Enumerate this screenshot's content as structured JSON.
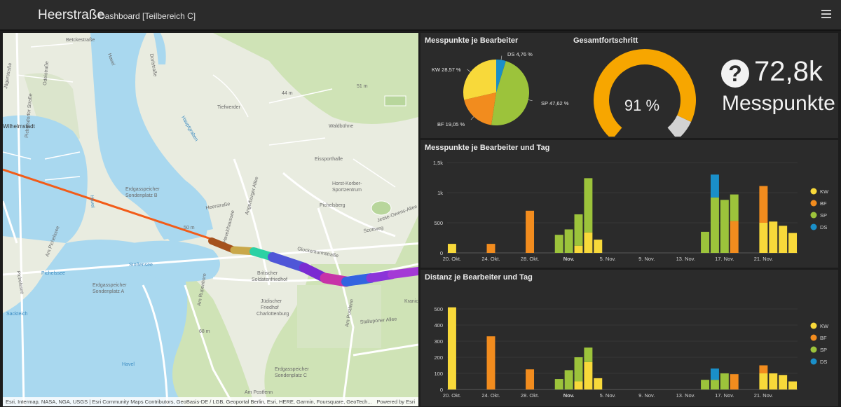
{
  "header": {
    "title": "Heerstraße",
    "subtitle": "Dashboard [Teilbereich C]"
  },
  "map": {
    "attribution": "Esri, Intermap, NASA, NGA, USGS | Esri Community Maps Contributors, GeoBasis-DE / LGB, Geoportal Berlin, Esri, HERE, Garmin, Foursquare, GeoTech...",
    "powered_by": "Powered by Esri",
    "labels": [
      "Betckestraße",
      "Jägerstraße",
      "Dorfstraße",
      "Havel",
      "Pichelsdorfer Straße",
      "Odeistraße",
      "Wilhelmstadt",
      "Tiefwerder",
      "Hauptgraben",
      "Waldbühne",
      "44 m",
      "51 m",
      "Erdgasspeicher Sondenplatz B",
      "Angerburger Allee",
      "Havelchaussee",
      "Eissporthalle",
      "Horst-Korber-Sportzentrum",
      "Am Pichelssee",
      "Pichelssee",
      "Stößensee",
      "50 m",
      "Britischer Soldatenfriedhof",
      "Jüdischer Friedhof Charlottenburg",
      "Sackteich",
      "Am Rupenhorn",
      "Heerstraße",
      "Glockenturmstraße",
      "Scottweg",
      "Jesse-Owens-Allee",
      "Kranich",
      "Stallupöner Allee",
      "Am Postfenn",
      "Erdgasspeicher Sondenplatz A",
      "Erdgasspeicher Sondenplatz C",
      "68 m",
      "Am Postfenn",
      "Havel",
      "Pichelsberg"
    ]
  },
  "colors": {
    "KW": "#f8d93a",
    "BF": "#f28c1e",
    "SP": "#9cc33b",
    "DS": "#1a8fc9",
    "panel": "#2b2b2b",
    "gauge_fill": "#f7a600",
    "gauge_rest": "#d2d2d2"
  },
  "pie": {
    "title": "Messpunkte je Bearbeiter",
    "chart_data": {
      "type": "pie",
      "slices": [
        {
          "name": "DS",
          "value": 4.76,
          "label": "DS 4,76 %",
          "color": "#1a8fc9"
        },
        {
          "name": "SP",
          "value": 47.62,
          "label": "SP 47,62 %",
          "color": "#9cc33b"
        },
        {
          "name": "BF",
          "value": 19.05,
          "label": "BF 19,05 %",
          "color": "#f28c1e"
        },
        {
          "name": "KW",
          "value": 28.57,
          "label": "KW 28,57 %",
          "color": "#f8d93a"
        }
      ]
    }
  },
  "gauge": {
    "title": "Gesamtfortschritt",
    "value_label": "91 %",
    "chart_data": {
      "type": "gauge",
      "value": 91,
      "min": 0,
      "max": 100
    }
  },
  "kpi": {
    "icon": "question-circle-icon",
    "value": "72,8k",
    "label": "Messpunkte"
  },
  "chart1": {
    "title": "Messpunkte je Bearbeiter und Tag",
    "chart_data": {
      "type": "bar",
      "stacked": true,
      "ylim": [
        0,
        1500
      ],
      "yticks": [
        0,
        500,
        1000,
        1500
      ],
      "ytick_labels": [
        "0",
        "500",
        "1k",
        "1,5k"
      ],
      "days": 36,
      "x_ticks": [
        {
          "index": 0,
          "label": "20. Okt.",
          "bold": false
        },
        {
          "index": 4,
          "label": "24. Okt.",
          "bold": false
        },
        {
          "index": 8,
          "label": "28. Okt.",
          "bold": false
        },
        {
          "index": 12,
          "label": "Nov.",
          "bold": true
        },
        {
          "index": 16,
          "label": "5. Nov.",
          "bold": false
        },
        {
          "index": 20,
          "label": "9. Nov.",
          "bold": false
        },
        {
          "index": 24,
          "label": "13. Nov.",
          "bold": false
        },
        {
          "index": 28,
          "label": "17. Nov.",
          "bold": false
        },
        {
          "index": 32,
          "label": "21. Nov.",
          "bold": false
        }
      ],
      "series_order": [
        "KW",
        "BF",
        "SP",
        "DS"
      ],
      "legend": [
        {
          "name": "KW",
          "color": "#f8d93a"
        },
        {
          "name": "BF",
          "color": "#f28c1e"
        },
        {
          "name": "SP",
          "color": "#9cc33b"
        },
        {
          "name": "DS",
          "color": "#1a8fc9"
        }
      ],
      "bars": [
        {
          "day": 0,
          "KW": 150
        },
        {
          "day": 4,
          "BF": 150
        },
        {
          "day": 8,
          "BF": 700
        },
        {
          "day": 11,
          "SP": 300
        },
        {
          "day": 12,
          "SP": 390
        },
        {
          "day": 13,
          "KW": 120,
          "SP": 520
        },
        {
          "day": 14,
          "KW": 340,
          "SP": 900
        },
        {
          "day": 15,
          "KW": 220
        },
        {
          "day": 26,
          "SP": 350
        },
        {
          "day": 27,
          "SP": 920,
          "DS": 380
        },
        {
          "day": 28,
          "SP": 880
        },
        {
          "day": 29,
          "BF": 530,
          "SP": 440
        },
        {
          "day": 32,
          "KW": 500,
          "BF": 610
        },
        {
          "day": 33,
          "KW": 520
        },
        {
          "day": 34,
          "KW": 450
        },
        {
          "day": 35,
          "KW": 330
        }
      ]
    }
  },
  "chart2": {
    "title": "Distanz je Bearbeiter und Tag",
    "chart_data": {
      "type": "bar",
      "stacked": true,
      "ylim": [
        0,
        500
      ],
      "yticks": [
        0,
        100,
        200,
        300,
        400,
        500
      ],
      "ytick_labels": [
        "0",
        "100",
        "200",
        "300",
        "400",
        "500"
      ],
      "days": 36,
      "x_ticks": [
        {
          "index": 0,
          "label": "20. Okt.",
          "bold": false
        },
        {
          "index": 4,
          "label": "24. Okt.",
          "bold": false
        },
        {
          "index": 8,
          "label": "28. Okt.",
          "bold": false
        },
        {
          "index": 12,
          "label": "Nov.",
          "bold": true
        },
        {
          "index": 16,
          "label": "5. Nov.",
          "bold": false
        },
        {
          "index": 20,
          "label": "9. Nov.",
          "bold": false
        },
        {
          "index": 24,
          "label": "13. Nov.",
          "bold": false
        },
        {
          "index": 28,
          "label": "17. Nov.",
          "bold": false
        },
        {
          "index": 32,
          "label": "21. Nov.",
          "bold": false
        }
      ],
      "series_order": [
        "KW",
        "BF",
        "SP",
        "DS"
      ],
      "legend": [
        {
          "name": "KW",
          "color": "#f8d93a"
        },
        {
          "name": "BF",
          "color": "#f28c1e"
        },
        {
          "name": "SP",
          "color": "#9cc33b"
        },
        {
          "name": "DS",
          "color": "#1a8fc9"
        }
      ],
      "bars": [
        {
          "day": 0,
          "KW": 510
        },
        {
          "day": 4,
          "BF": 330
        },
        {
          "day": 8,
          "BF": 125
        },
        {
          "day": 11,
          "SP": 65
        },
        {
          "day": 12,
          "SP": 120
        },
        {
          "day": 13,
          "KW": 50,
          "SP": 150
        },
        {
          "day": 14,
          "KW": 170,
          "SP": 90
        },
        {
          "day": 15,
          "KW": 70
        },
        {
          "day": 26,
          "SP": 60
        },
        {
          "day": 27,
          "SP": 60,
          "DS": 70
        },
        {
          "day": 28,
          "SP": 100
        },
        {
          "day": 29,
          "BF": 95,
          "SP": 0
        },
        {
          "day": 32,
          "KW": 100,
          "BF": 50
        },
        {
          "day": 33,
          "KW": 100
        },
        {
          "day": 34,
          "KW": 90
        },
        {
          "day": 35,
          "KW": 50
        }
      ]
    }
  }
}
